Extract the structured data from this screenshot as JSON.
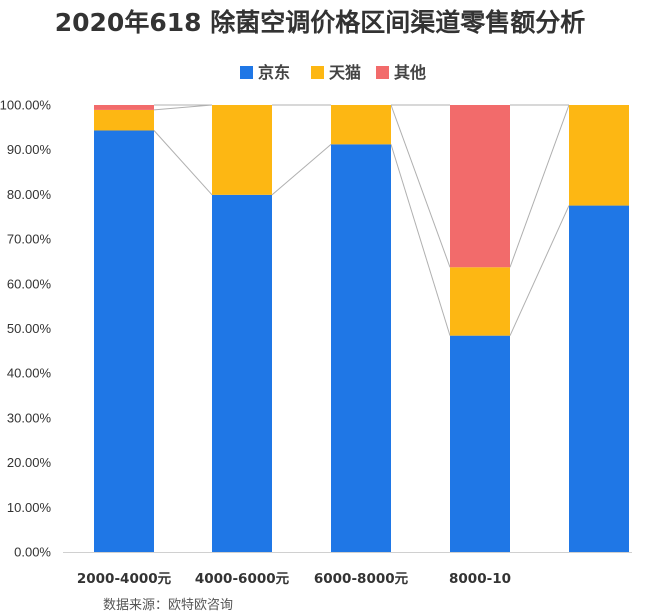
{
  "colors": {
    "jd": "#1f77e6",
    "tmall": "#fdb713",
    "other": "#f26b6b",
    "connector": "#b0b0b0",
    "axis": "#d0d0d0"
  },
  "chart_data": {
    "type": "bar",
    "stacked": true,
    "title": "2020年618 除菌空调价格区间渠道零售额分析",
    "categories": [
      "2000-4000元",
      "4000-6000元",
      "6000-8000元",
      "8000-10",
      ""
    ],
    "series": [
      {
        "name": "京东",
        "color_key": "jd",
        "values": [
          94.3,
          79.9,
          91.2,
          48.4,
          77.5
        ]
      },
      {
        "name": "天猫",
        "color_key": "tmall",
        "values": [
          4.6,
          20.1,
          8.8,
          15.3,
          22.5
        ]
      },
      {
        "name": "其他",
        "color_key": "other",
        "values": [
          1.1,
          0.0,
          0.0,
          36.3,
          0.0
        ]
      }
    ],
    "ylim": [
      0,
      100
    ],
    "yticks": [
      "0.00%",
      "10.00%",
      "20.00%",
      "30.00%",
      "40.00%",
      "50.00%",
      "60.00%",
      "70.00%",
      "80.00%",
      "90.00%",
      "100.00%"
    ],
    "legend_position": "top-center",
    "series_lines": true,
    "source": "数据来源：欧特欧咨询"
  }
}
